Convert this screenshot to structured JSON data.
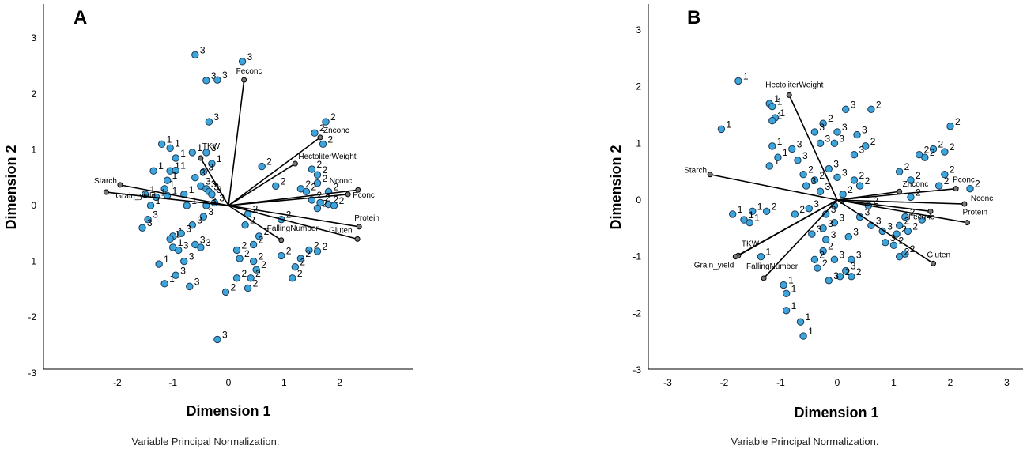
{
  "colors": {
    "point": "#3ea4dc",
    "point_stroke": "#1a3a55",
    "vector": "#000000",
    "vector_end": "#777777"
  },
  "chart_data": [
    {
      "panel": "A",
      "type": "scatter",
      "xlabel": "Dimension 1",
      "ylabel": "Dimension 2",
      "note": "Variable Principal Normalization.",
      "xlim": [
        -3.3,
        3.4
      ],
      "ylim": [
        -3.0,
        3.6
      ],
      "xticks": [
        -2,
        -1,
        0,
        1,
        2
      ],
      "yticks": [
        -3,
        -2,
        -1,
        0,
        1,
        2,
        3
      ],
      "points": [
        {
          "x": -0.6,
          "y": 2.7,
          "g": "3"
        },
        {
          "x": 0.25,
          "y": 2.58,
          "g": "3"
        },
        {
          "x": -0.4,
          "y": 2.24,
          "g": "3"
        },
        {
          "x": -0.2,
          "y": 2.25,
          "g": "3"
        },
        {
          "x": -0.35,
          "y": 1.5,
          "g": "3"
        },
        {
          "x": 1.75,
          "y": 1.5,
          "g": "2"
        },
        {
          "x": 1.55,
          "y": 1.3,
          "g": "2"
        },
        {
          "x": 1.7,
          "y": 1.1,
          "g": "2"
        },
        {
          "x": -1.2,
          "y": 1.1,
          "g": "1"
        },
        {
          "x": -1.05,
          "y": 1.03,
          "g": "1"
        },
        {
          "x": -0.65,
          "y": 0.95,
          "g": "1"
        },
        {
          "x": -0.4,
          "y": 0.95,
          "g": "3"
        },
        {
          "x": -0.95,
          "y": 0.85,
          "g": "1"
        },
        {
          "x": -0.3,
          "y": 0.75,
          "g": "1"
        },
        {
          "x": 0.6,
          "y": 0.7,
          "g": "2"
        },
        {
          "x": 1.5,
          "y": 0.65,
          "g": "2"
        },
        {
          "x": 1.6,
          "y": 0.55,
          "g": "2"
        },
        {
          "x": -1.35,
          "y": 0.62,
          "g": "1"
        },
        {
          "x": -1.05,
          "y": 0.62,
          "g": "1"
        },
        {
          "x": -0.95,
          "y": 0.63,
          "g": "1"
        },
        {
          "x": -0.45,
          "y": 0.6,
          "g": "3"
        },
        {
          "x": -0.6,
          "y": 0.5,
          "g": "3"
        },
        {
          "x": -1.1,
          "y": 0.45,
          "g": "1"
        },
        {
          "x": 0.85,
          "y": 0.35,
          "g": "2"
        },
        {
          "x": 1.3,
          "y": 0.3,
          "g": "2"
        },
        {
          "x": 1.6,
          "y": 0.4,
          "g": "2"
        },
        {
          "x": -1.15,
          "y": 0.3,
          "g": "1"
        },
        {
          "x": -0.5,
          "y": 0.35,
          "g": "3"
        },
        {
          "x": -0.4,
          "y": 0.3,
          "g": "3"
        },
        {
          "x": -0.35,
          "y": 0.25,
          "g": "3"
        },
        {
          "x": 1.4,
          "y": 0.25,
          "g": "2"
        },
        {
          "x": 1.8,
          "y": 0.25,
          "g": "2"
        },
        {
          "x": -1.5,
          "y": 0.2,
          "g": "1"
        },
        {
          "x": -0.8,
          "y": 0.2,
          "g": "1"
        },
        {
          "x": -0.3,
          "y": 0.2,
          "g": "3"
        },
        {
          "x": 1.5,
          "y": 0.1,
          "g": "2"
        },
        {
          "x": 1.65,
          "y": 0.05,
          "g": "2"
        },
        {
          "x": -1.3,
          "y": 0.15,
          "g": "1"
        },
        {
          "x": -1.1,
          "y": 0.18,
          "g": "1"
        },
        {
          "x": -0.25,
          "y": 0.05,
          "g": "3"
        },
        {
          "x": 1.8,
          "y": 0.02,
          "g": "2"
        },
        {
          "x": 1.6,
          "y": -0.05,
          "g": "2"
        },
        {
          "x": 1.9,
          "y": 0.0,
          "g": "2"
        },
        {
          "x": -1.4,
          "y": 0.0,
          "g": "1"
        },
        {
          "x": -0.75,
          "y": 0.0,
          "g": "1"
        },
        {
          "x": -0.4,
          "y": 0.0,
          "g": "3"
        },
        {
          "x": 0.35,
          "y": -0.15,
          "g": "2"
        },
        {
          "x": 0.95,
          "y": -0.25,
          "g": "2"
        },
        {
          "x": -1.45,
          "y": -0.25,
          "g": "3"
        },
        {
          "x": -0.45,
          "y": -0.2,
          "g": "3"
        },
        {
          "x": 0.3,
          "y": -0.35,
          "g": "2"
        },
        {
          "x": -1.55,
          "y": -0.4,
          "g": "3"
        },
        {
          "x": -0.65,
          "y": -0.35,
          "g": "3"
        },
        {
          "x": 0.55,
          "y": -0.55,
          "g": "2"
        },
        {
          "x": -1.0,
          "y": -0.55,
          "g": "1"
        },
        {
          "x": -0.85,
          "y": -0.5,
          "g": "3"
        },
        {
          "x": -1.05,
          "y": -0.6,
          "g": "1"
        },
        {
          "x": -0.6,
          "y": -0.7,
          "g": "3"
        },
        {
          "x": -0.5,
          "y": -0.75,
          "g": "3"
        },
        {
          "x": 0.45,
          "y": -0.7,
          "g": "2"
        },
        {
          "x": 0.15,
          "y": -0.8,
          "g": "2"
        },
        {
          "x": 1.45,
          "y": -0.8,
          "g": "2"
        },
        {
          "x": 1.6,
          "y": -0.82,
          "g": "2"
        },
        {
          "x": -0.9,
          "y": -0.8,
          "g": "3"
        },
        {
          "x": -1.0,
          "y": -0.75,
          "g": "1"
        },
        {
          "x": 0.95,
          "y": -0.9,
          "g": "2"
        },
        {
          "x": 0.2,
          "y": -0.95,
          "g": "2"
        },
        {
          "x": 1.3,
          "y": -0.95,
          "g": "2"
        },
        {
          "x": -0.8,
          "y": -1.0,
          "g": "3"
        },
        {
          "x": 0.45,
          "y": -1.0,
          "g": "2"
        },
        {
          "x": 1.2,
          "y": -1.1,
          "g": "2"
        },
        {
          "x": -1.25,
          "y": -1.05,
          "g": "1"
        },
        {
          "x": 0.5,
          "y": -1.15,
          "g": "2"
        },
        {
          "x": -0.95,
          "y": -1.25,
          "g": "3"
        },
        {
          "x": 0.15,
          "y": -1.3,
          "g": "2"
        },
        {
          "x": 0.4,
          "y": -1.3,
          "g": "2"
        },
        {
          "x": 1.15,
          "y": -1.3,
          "g": "2"
        },
        {
          "x": -0.7,
          "y": -1.45,
          "g": "3"
        },
        {
          "x": -1.15,
          "y": -1.4,
          "g": "1"
        },
        {
          "x": 0.35,
          "y": -1.48,
          "g": "2"
        },
        {
          "x": -0.05,
          "y": -1.55,
          "g": "2"
        },
        {
          "x": -0.2,
          "y": -2.4,
          "g": "3"
        }
      ],
      "vectors": [
        {
          "name": "Feconc",
          "x": 0.28,
          "y": 2.25
        },
        {
          "name": "Znconc",
          "x": 1.65,
          "y": 1.22
        },
        {
          "name": "HectoliterWeight",
          "x": 1.2,
          "y": 0.75
        },
        {
          "name": "TKW",
          "x": -0.5,
          "y": 0.85
        },
        {
          "name": "Starch",
          "x": -1.95,
          "y": 0.37
        },
        {
          "name": "Grain_yield",
          "x": -2.2,
          "y": 0.24
        },
        {
          "name": "Nconc",
          "x": 2.33,
          "y": 0.28
        },
        {
          "name": "Pconc",
          "x": 2.15,
          "y": 0.2
        },
        {
          "name": "Protein",
          "x": 2.35,
          "y": -0.38
        },
        {
          "name": "Gluten",
          "x": 2.32,
          "y": -0.6
        },
        {
          "name": "FallingNumber",
          "x": 0.95,
          "y": -0.62
        }
      ]
    },
    {
      "panel": "B",
      "type": "scatter",
      "xlabel": "Dimension 1",
      "ylabel": "Dimension 2",
      "note": "Variable Principal Normalization.",
      "xlim": [
        -3.3,
        3.4
      ],
      "ylim": [
        -3.0,
        3.4
      ],
      "xticks": [
        -3,
        -2,
        -1,
        0,
        1,
        2,
        3
      ],
      "yticks": [
        -3,
        -2,
        -1,
        0,
        1,
        2,
        3
      ],
      "points": [
        {
          "x": -1.75,
          "y": 2.1,
          "g": "1"
        },
        {
          "x": -2.05,
          "y": 1.25,
          "g": "1"
        },
        {
          "x": -1.2,
          "y": 1.7,
          "g": "1"
        },
        {
          "x": -1.15,
          "y": 1.65,
          "g": "1"
        },
        {
          "x": -1.1,
          "y": 1.45,
          "g": "1"
        },
        {
          "x": -1.15,
          "y": 1.4,
          "g": "1"
        },
        {
          "x": -1.15,
          "y": 0.95,
          "g": "1"
        },
        {
          "x": -1.2,
          "y": 0.6,
          "g": "1"
        },
        {
          "x": -1.05,
          "y": 0.75,
          "g": "1"
        },
        {
          "x": -0.8,
          "y": 0.9,
          "g": "3"
        },
        {
          "x": 0.15,
          "y": 1.6,
          "g": "3"
        },
        {
          "x": 0.6,
          "y": 1.6,
          "g": "2"
        },
        {
          "x": 2.0,
          "y": 1.3,
          "g": "2"
        },
        {
          "x": -0.25,
          "y": 1.35,
          "g": "2"
        },
        {
          "x": -0.4,
          "y": 1.2,
          "g": "3"
        },
        {
          "x": 0.0,
          "y": 1.2,
          "g": "3"
        },
        {
          "x": 0.35,
          "y": 1.15,
          "g": "3"
        },
        {
          "x": -0.3,
          "y": 1.0,
          "g": "3"
        },
        {
          "x": -0.05,
          "y": 1.0,
          "g": "3"
        },
        {
          "x": 0.5,
          "y": 0.95,
          "g": "2"
        },
        {
          "x": 1.7,
          "y": 0.9,
          "g": "2"
        },
        {
          "x": 1.9,
          "y": 0.85,
          "g": "2"
        },
        {
          "x": -0.7,
          "y": 0.7,
          "g": "3"
        },
        {
          "x": 0.3,
          "y": 0.8,
          "g": "3"
        },
        {
          "x": 1.45,
          "y": 0.8,
          "g": "2"
        },
        {
          "x": 1.55,
          "y": 0.75,
          "g": "2"
        },
        {
          "x": -0.15,
          "y": 0.55,
          "g": "3"
        },
        {
          "x": -0.6,
          "y": 0.45,
          "g": "2"
        },
        {
          "x": 1.1,
          "y": 0.5,
          "g": "2"
        },
        {
          "x": 1.9,
          "y": 0.45,
          "g": "2"
        },
        {
          "x": -0.4,
          "y": 0.35,
          "g": "2"
        },
        {
          "x": 0.0,
          "y": 0.4,
          "g": "3"
        },
        {
          "x": 0.3,
          "y": 0.35,
          "g": "2"
        },
        {
          "x": 1.3,
          "y": 0.35,
          "g": "2"
        },
        {
          "x": -0.55,
          "y": 0.25,
          "g": "3"
        },
        {
          "x": 0.4,
          "y": 0.25,
          "g": "2"
        },
        {
          "x": 1.8,
          "y": 0.25,
          "g": "2"
        },
        {
          "x": 2.35,
          "y": 0.2,
          "g": "2"
        },
        {
          "x": -0.3,
          "y": 0.15,
          "g": "3"
        },
        {
          "x": 0.1,
          "y": 0.1,
          "g": "2"
        },
        {
          "x": 1.3,
          "y": 0.05,
          "g": "2"
        },
        {
          "x": -0.5,
          "y": -0.15,
          "g": "3"
        },
        {
          "x": -0.05,
          "y": -0.1,
          "g": "3"
        },
        {
          "x": 0.55,
          "y": -0.1,
          "g": "2"
        },
        {
          "x": -1.85,
          "y": -0.25,
          "g": "1"
        },
        {
          "x": -1.5,
          "y": -0.2,
          "g": "1"
        },
        {
          "x": -1.25,
          "y": -0.2,
          "g": "2"
        },
        {
          "x": -1.65,
          "y": -0.35,
          "g": "1"
        },
        {
          "x": -1.55,
          "y": -0.4,
          "g": "1"
        },
        {
          "x": -0.75,
          "y": -0.25,
          "g": "2"
        },
        {
          "x": -0.2,
          "y": -0.25,
          "g": "3"
        },
        {
          "x": 0.4,
          "y": -0.3,
          "g": "3"
        },
        {
          "x": 1.2,
          "y": -0.3,
          "g": "2"
        },
        {
          "x": 1.5,
          "y": -0.35,
          "g": "2"
        },
        {
          "x": -0.05,
          "y": -0.4,
          "g": "3"
        },
        {
          "x": 0.6,
          "y": -0.45,
          "g": "3"
        },
        {
          "x": 1.1,
          "y": -0.45,
          "g": "2"
        },
        {
          "x": -0.25,
          "y": -0.5,
          "g": "3"
        },
        {
          "x": 0.8,
          "y": -0.55,
          "g": "3"
        },
        {
          "x": 1.25,
          "y": -0.55,
          "g": "2"
        },
        {
          "x": 1.05,
          "y": -0.6,
          "g": "2"
        },
        {
          "x": -0.45,
          "y": -0.6,
          "g": "3"
        },
        {
          "x": 0.2,
          "y": -0.65,
          "g": "3"
        },
        {
          "x": 0.85,
          "y": -0.75,
          "g": "3"
        },
        {
          "x": -0.2,
          "y": -0.7,
          "g": "3"
        },
        {
          "x": 1.0,
          "y": -0.8,
          "g": "2"
        },
        {
          "x": -0.25,
          "y": -0.9,
          "g": "2"
        },
        {
          "x": 1.2,
          "y": -0.95,
          "g": "2"
        },
        {
          "x": -0.05,
          "y": -1.05,
          "g": "3"
        },
        {
          "x": 0.25,
          "y": -1.05,
          "g": "3"
        },
        {
          "x": 1.1,
          "y": -1.0,
          "g": "2"
        },
        {
          "x": -1.35,
          "y": -1.0,
          "g": "1"
        },
        {
          "x": 0.15,
          "y": -1.25,
          "g": "3"
        },
        {
          "x": 0.25,
          "y": -1.35,
          "g": "2"
        },
        {
          "x": 0.05,
          "y": -1.35,
          "g": "2"
        },
        {
          "x": -0.15,
          "y": -1.42,
          "g": "3"
        },
        {
          "x": -0.35,
          "y": -1.2,
          "g": "2"
        },
        {
          "x": -0.4,
          "y": -1.05,
          "g": "2"
        },
        {
          "x": -0.95,
          "y": -1.5,
          "g": "1"
        },
        {
          "x": -0.9,
          "y": -1.65,
          "g": "1"
        },
        {
          "x": -0.9,
          "y": -1.95,
          "g": "1"
        },
        {
          "x": -0.65,
          "y": -2.15,
          "g": "1"
        },
        {
          "x": -0.6,
          "y": -2.4,
          "g": "1"
        }
      ],
      "vectors": [
        {
          "name": "HectoliterWeight",
          "x": -0.85,
          "y": 1.85
        },
        {
          "name": "Starch",
          "x": -2.25,
          "y": 0.45
        },
        {
          "name": "Pconc",
          "x": 2.1,
          "y": 0.2
        },
        {
          "name": "Znconc",
          "x": 1.1,
          "y": 0.15
        },
        {
          "name": "Nconc",
          "x": 2.25,
          "y": -0.07
        },
        {
          "name": "Protein",
          "x": 2.3,
          "y": -0.4
        },
        {
          "name": "Feconc",
          "x": 1.65,
          "y": -0.2
        },
        {
          "name": "Gluten",
          "x": 1.7,
          "y": -1.12
        },
        {
          "name": "TKW",
          "x": -1.75,
          "y": -0.98
        },
        {
          "name": "Grain_yield",
          "x": -1.8,
          "y": -1.0
        },
        {
          "name": "FallingNumber",
          "x": -1.3,
          "y": -1.38
        }
      ]
    }
  ]
}
